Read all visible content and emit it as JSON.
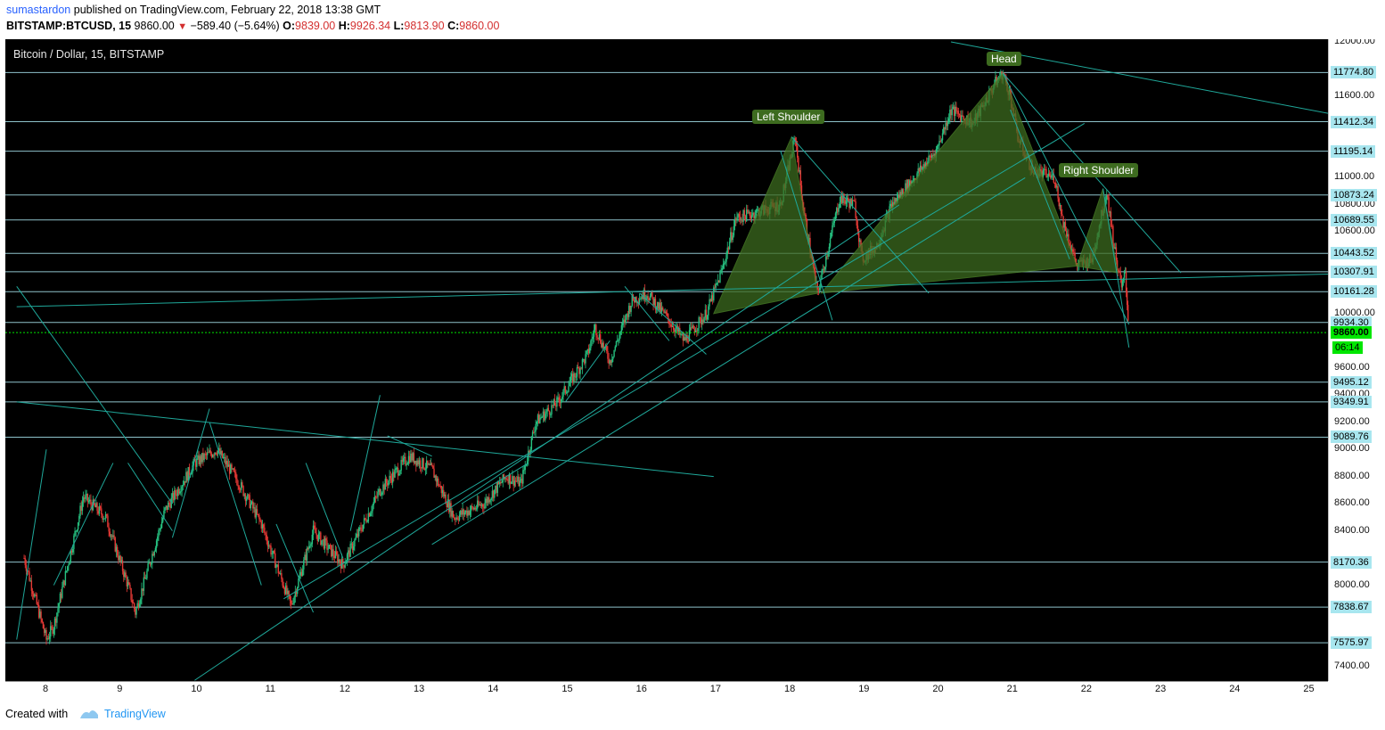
{
  "header": {
    "author": "sumastardon",
    "published_text": "published on TradingView.com, February 22, 2018 13:38 GMT",
    "symbol": "BITSTAMP:BTCUSD, 15",
    "last": "9860.00",
    "change": "−589.40 (−5.64%)",
    "o_label": "O:",
    "o_val": "9839.00",
    "h_label": "H:",
    "h_val": "9926.34",
    "l_label": "L:",
    "l_val": "9813.90",
    "c_label": "C:",
    "c_val": "9860.00"
  },
  "chart": {
    "title": "Bitcoin / Dollar, 15, BITSTAMP",
    "colors": {
      "background": "#000000",
      "level_line": "#a8e6ef",
      "trend_line": "#1fa89a",
      "pattern_fill": "#3d6b1f",
      "bull": "#26c281",
      "bear": "#e53935",
      "current": "#00e600"
    },
    "pattern_labels": {
      "left_shoulder": "Left Shoulder",
      "head": "Head",
      "right_shoulder": "Right Shoulder"
    },
    "price_ticks": [
      "12000.00",
      "11600.00",
      "11000.00",
      "10800.00",
      "10600.00",
      "10000.00",
      "9600.00",
      "9400.00",
      "9200.00",
      "9000.00",
      "8800.00",
      "8600.00",
      "8400.00",
      "8000.00",
      "7400.00"
    ],
    "levels": [
      "11774.80",
      "11412.34",
      "11195.14",
      "10873.24",
      "10689.55",
      "10443.52",
      "10307.91",
      "10161.28",
      "9934.30",
      "9495.12",
      "9349.91",
      "9089.76",
      "8170.36",
      "7838.67",
      "7575.97"
    ],
    "current_price": "9860.00",
    "countdown": "06:14",
    "time_ticks": [
      "8",
      "9",
      "10",
      "11",
      "12",
      "13",
      "14",
      "15",
      "16",
      "17",
      "18",
      "19",
      "20",
      "21",
      "22",
      "23",
      "24",
      "25"
    ]
  },
  "footer": {
    "created_with": "Created with",
    "brand": "TradingView"
  }
}
